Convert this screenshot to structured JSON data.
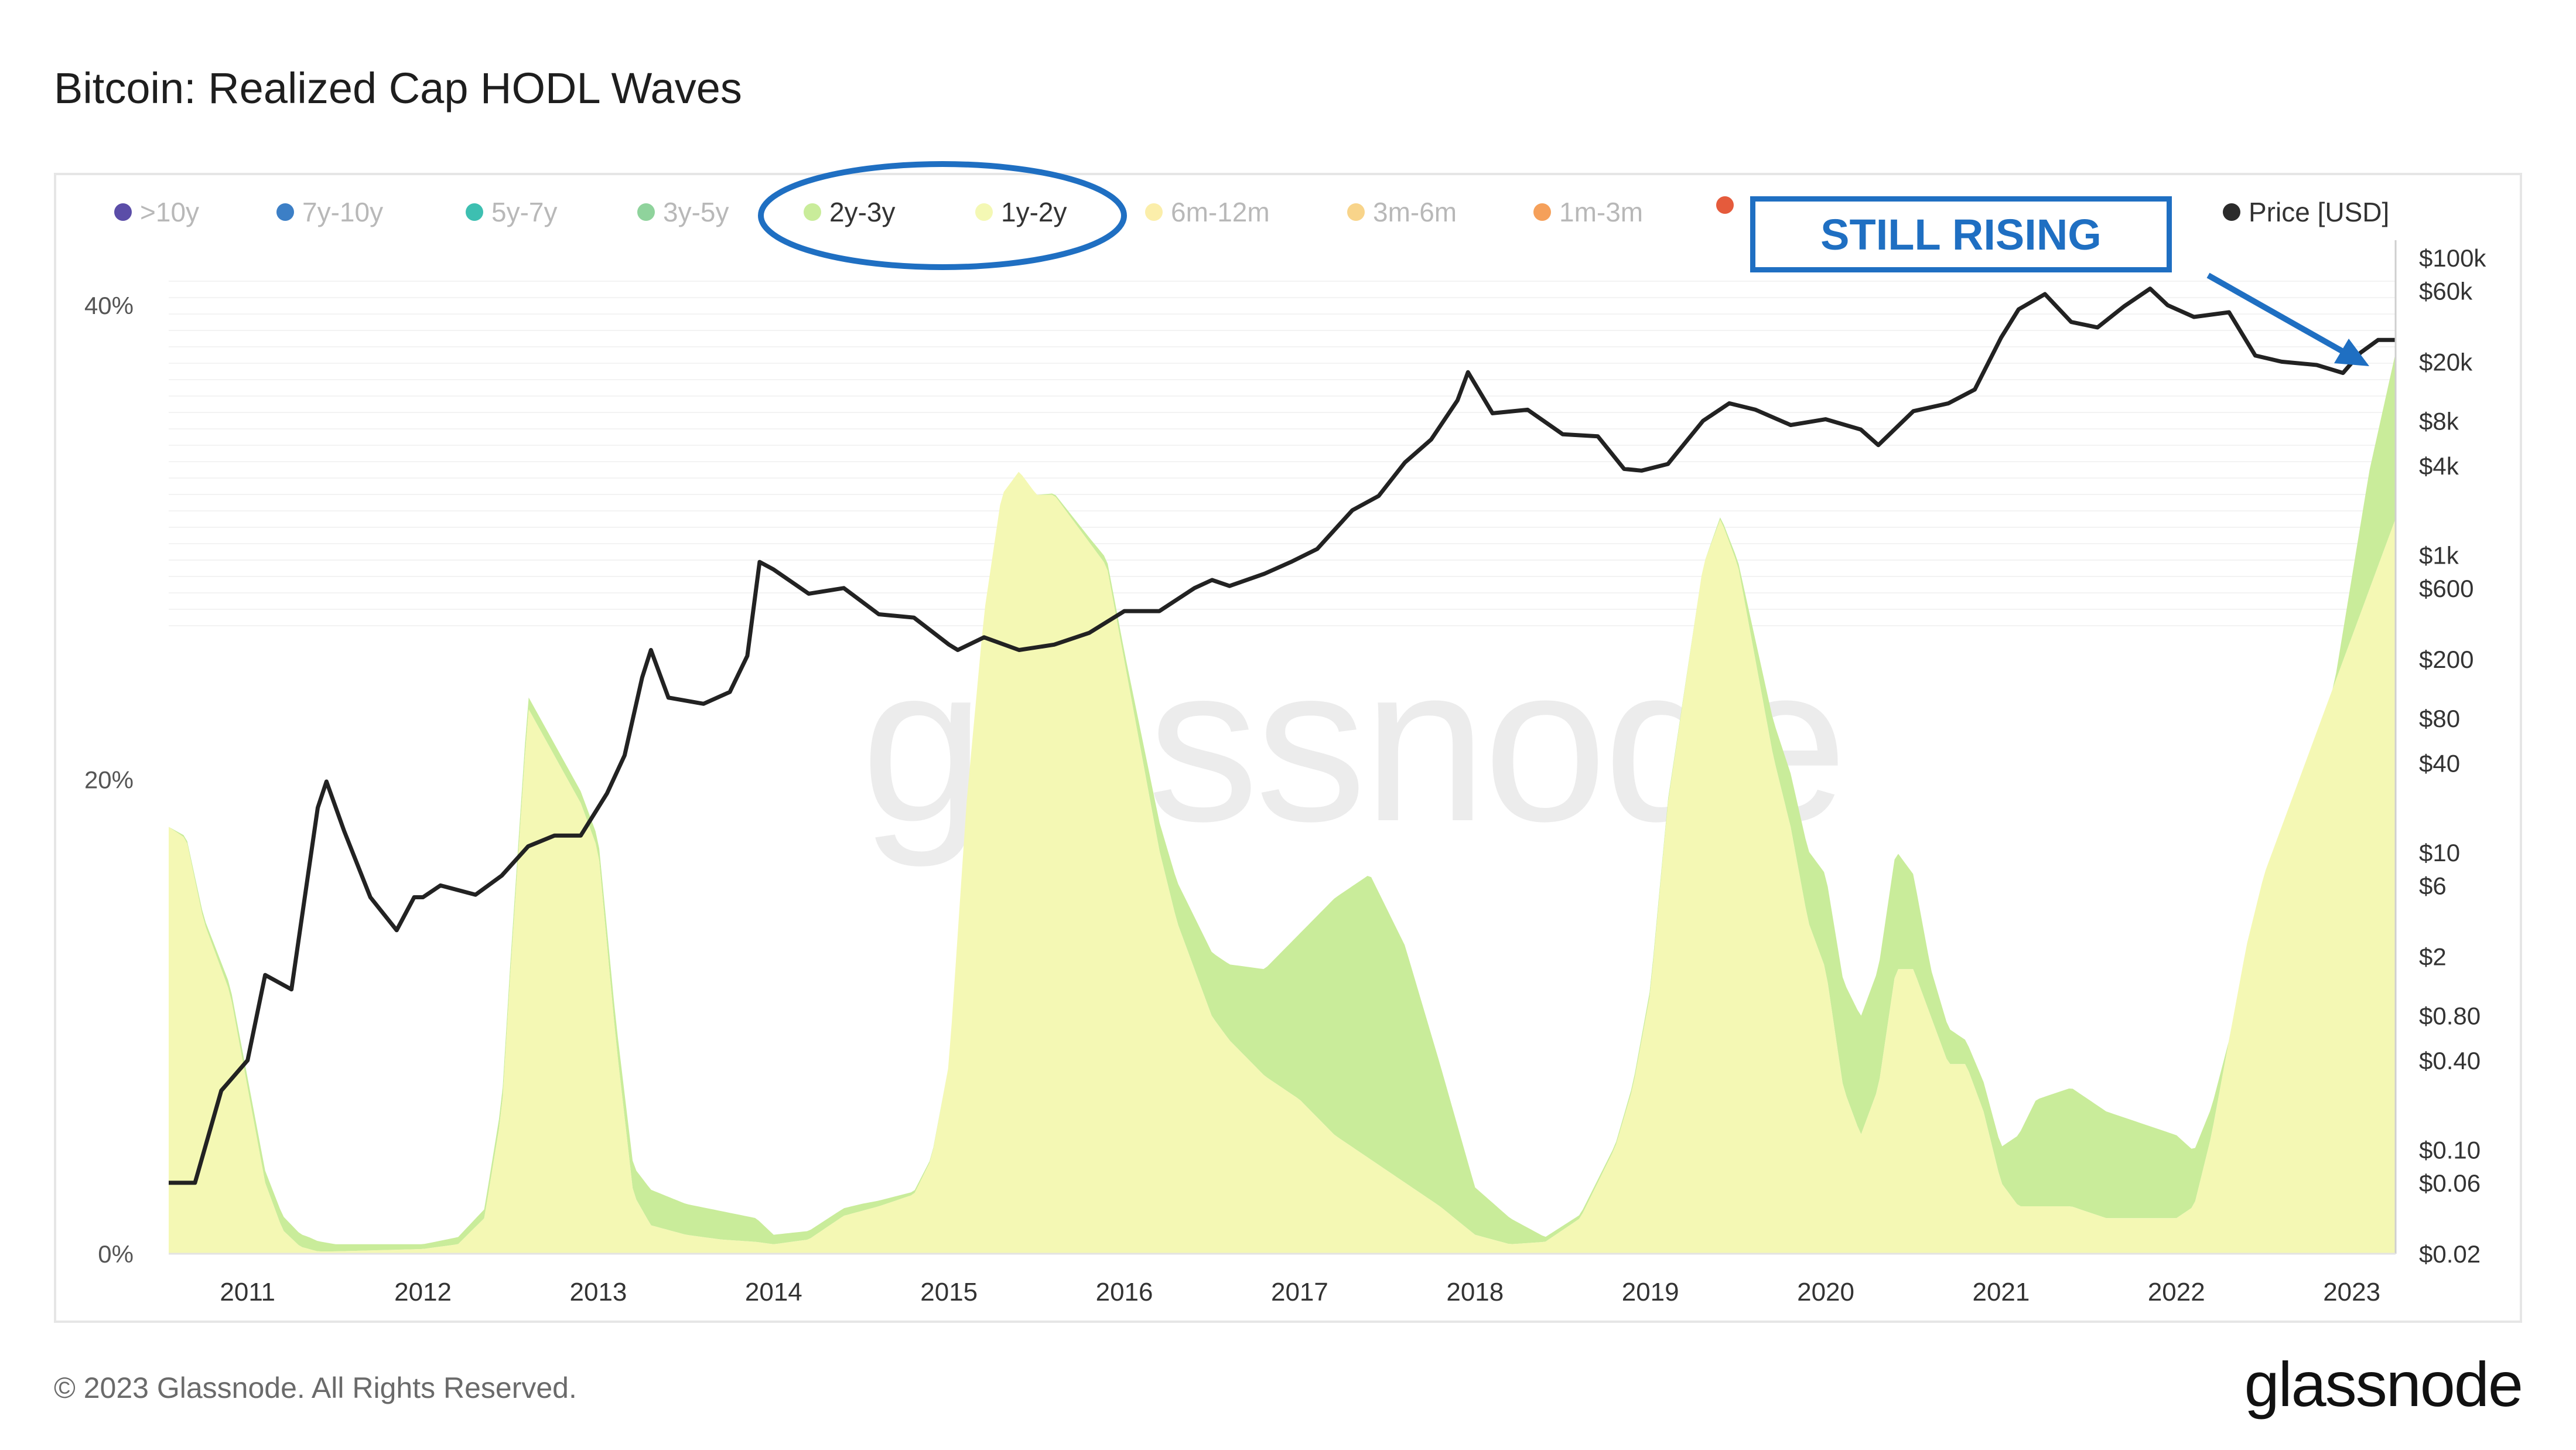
{
  "title": "Bitcoin: Realized Cap HODL Waves",
  "footer": "© 2023 Glassnode. All Rights Reserved.",
  "logo": "glassnode",
  "watermark": "glassnode",
  "annotation": {
    "text": "STILL RISING",
    "color": "#1f6fc2"
  },
  "legend": [
    {
      "label": ">10y",
      "color": "#5b4da8",
      "highlighted": false
    },
    {
      "label": "7y-10y",
      "color": "#3c7fc6",
      "highlighted": false
    },
    {
      "label": "5y-7y",
      "color": "#3dbfb1",
      "highlighted": false
    },
    {
      "label": "3y-5y",
      "color": "#8fd39c",
      "highlighted": false
    },
    {
      "label": "2y-3y",
      "color": "#c9ec9a",
      "highlighted": true
    },
    {
      "label": "1y-2y",
      "color": "#f4f8b4",
      "highlighted": true
    },
    {
      "label": "6m-12m",
      "color": "#fbeeaa",
      "highlighted": false
    },
    {
      "label": "3m-6m",
      "color": "#f8d48a",
      "highlighted": false
    },
    {
      "label": "1m-3m",
      "color": "#f5a05a",
      "highlighted": false
    },
    {
      "label": "",
      "color": "#e55b3c",
      "highlighted": false
    },
    {
      "label": "Price [USD]",
      "color": "#2b2b2b",
      "highlighted": true
    }
  ],
  "chart_data": {
    "type": "area",
    "title": "Bitcoin: Realized Cap HODL Waves",
    "x_ticks": [
      "2011",
      "2012",
      "2013",
      "2014",
      "2015",
      "2016",
      "2017",
      "2018",
      "2019",
      "2020",
      "2021",
      "2022",
      "2023"
    ],
    "xlim": [
      2010.55,
      2023.25
    ],
    "y_left_ticks": [
      "0%",
      "20%",
      "40%"
    ],
    "ylim_left": [
      0,
      42
    ],
    "y_right_ticks": [
      "$100k",
      "$60k",
      "$20k",
      "$8k",
      "$4k",
      "$1k",
      "$600",
      "$200",
      "$80",
      "$40",
      "$10",
      "$6",
      "$2",
      "$0.80",
      "$0.40",
      "$0.10",
      "$0.06",
      "$0.02"
    ],
    "ylim_right_log": [
      0.02,
      100000
    ],
    "series": [
      {
        "name": "1y-2y",
        "color": "#f4f8b4",
        "x": [
          2010.55,
          2010.65,
          2010.75,
          2010.9,
          2011.0,
          2011.1,
          2011.2,
          2011.3,
          2011.4,
          2011.5,
          2012.0,
          2012.2,
          2012.35,
          2012.45,
          2012.5,
          2012.6,
          2012.75,
          2012.9,
          2013.0,
          2013.1,
          2013.2,
          2013.3,
          2013.5,
          2013.7,
          2013.9,
          2014.0,
          2014.2,
          2014.4,
          2014.6,
          2014.8,
          2014.9,
          2015.0,
          2015.1,
          2015.2,
          2015.3,
          2015.4,
          2015.5,
          2015.6,
          2015.7,
          2015.8,
          2015.9,
          2016.0,
          2016.1,
          2016.2,
          2016.3,
          2016.4,
          2016.5,
          2016.6,
          2016.8,
          2017.0,
          2017.2,
          2017.4,
          2017.6,
          2017.8,
          2018.0,
          2018.2,
          2018.4,
          2018.6,
          2018.7,
          2018.8,
          2018.9,
          2019.0,
          2019.1,
          2019.2,
          2019.3,
          2019.4,
          2019.5,
          2019.6,
          2019.7,
          2019.8,
          2019.9,
          2020.0,
          2020.1,
          2020.2,
          2020.3,
          2020.4,
          2020.5,
          2020.6,
          2020.7,
          2020.8,
          2020.9,
          2021.0,
          2021.1,
          2021.2,
          2021.4,
          2021.6,
          2021.8,
          2022.0,
          2022.1,
          2022.2,
          2022.3,
          2022.4,
          2022.5,
          2022.6,
          2022.7,
          2022.8,
          2022.9,
          2023.0,
          2023.1,
          2023.2,
          2023.25
        ],
        "values": [
          18,
          17.5,
          14,
          11,
          7,
          3,
          1,
          0.3,
          0.1,
          0.1,
          0.2,
          0.4,
          1.5,
          6,
          12,
          23,
          21,
          19,
          17,
          9,
          2.5,
          1.2,
          0.8,
          0.6,
          0.5,
          0.4,
          0.6,
          1.6,
          2,
          2.5,
          4,
          8,
          19,
          27,
          32,
          33,
          32,
          32,
          31,
          30,
          29,
          25,
          21,
          17,
          14,
          12,
          10,
          9,
          7.5,
          6.5,
          5,
          4,
          3,
          2,
          0.8,
          0.4,
          0.5,
          1.5,
          3,
          4.5,
          7,
          11,
          19,
          24,
          29,
          31,
          29,
          25,
          21,
          18,
          14,
          12,
          7,
          5,
          7,
          12,
          12,
          10,
          8,
          8,
          6,
          3,
          2,
          2,
          2,
          1.5,
          1.5,
          1.5,
          2,
          5,
          9,
          13,
          16,
          18,
          20,
          22,
          24,
          26,
          28,
          30,
          31
        ]
      },
      {
        "name": "2y-3y",
        "color": "#c9ec9a",
        "x": [
          2010.55,
          2011.2,
          2011.35,
          2011.5,
          2012.0,
          2012.6,
          2013.0,
          2013.3,
          2013.5,
          2013.7,
          2013.9,
          2014.0,
          2014.5,
          2015.0,
          2015.5,
          2015.8,
          2016.0,
          2016.2,
          2016.4,
          2016.6,
          2016.8,
          2017.0,
          2017.2,
          2017.4,
          2017.6,
          2017.8,
          2018.0,
          2018.4,
          2018.8,
          2019.0,
          2019.3,
          2019.5,
          2019.7,
          2019.9,
          2020.0,
          2020.2,
          2020.4,
          2020.5,
          2020.6,
          2020.8,
          2021.0,
          2021.2,
          2021.4,
          2021.6,
          2021.8,
          2022.0,
          2022.3,
          2022.6,
          2022.9,
          2023.1,
          2023.25
        ],
        "values": [
          0,
          0.6,
          0.5,
          0.3,
          0.2,
          0.5,
          0.5,
          1.5,
          1.3,
          1.2,
          1.0,
          0.4,
          0.3,
          0,
          0,
          0.2,
          0.4,
          1.2,
          2.2,
          3.2,
          4.5,
          7,
          10,
          12,
          10,
          6,
          2,
          0.2,
          0.1,
          0.2,
          0,
          0.2,
          1.5,
          3,
          4,
          5,
          5,
          4,
          2,
          1,
          1.5,
          4.5,
          5,
          4.5,
          4,
          3.5,
          0,
          0,
          0,
          5,
          7
        ]
      }
    ],
    "price_series": {
      "name": "Price [USD]",
      "color": "#222222",
      "x": [
        2010.55,
        2010.7,
        2010.85,
        2011.0,
        2011.1,
        2011.25,
        2011.4,
        2011.45,
        2011.55,
        2011.7,
        2011.85,
        2011.95,
        2012.0,
        2012.1,
        2012.3,
        2012.45,
        2012.6,
        2012.75,
        2012.9,
        2013.05,
        2013.15,
        2013.25,
        2013.3,
        2013.4,
        2013.6,
        2013.75,
        2013.85,
        2013.92,
        2014.0,
        2014.2,
        2014.4,
        2014.6,
        2014.8,
        2015.0,
        2015.05,
        2015.2,
        2015.4,
        2015.6,
        2015.8,
        2016.0,
        2016.2,
        2016.4,
        2016.5,
        2016.6,
        2016.8,
        2016.95,
        2017.1,
        2017.3,
        2017.45,
        2017.6,
        2017.75,
        2017.9,
        2017.96,
        2018.1,
        2018.3,
        2018.5,
        2018.7,
        2018.85,
        2018.95,
        2019.1,
        2019.3,
        2019.45,
        2019.6,
        2019.8,
        2020.0,
        2020.2,
        2020.3,
        2020.5,
        2020.7,
        2020.85,
        2021.0,
        2021.1,
        2021.25,
        2021.4,
        2021.55,
        2021.7,
        2021.85,
        2021.95,
        2022.1,
        2022.3,
        2022.45,
        2022.6,
        2022.8,
        2022.95,
        2023.05,
        2023.15,
        2023.25
      ],
      "values": [
        0.06,
        0.06,
        0.25,
        0.4,
        1.5,
        1.2,
        20,
        30,
        14,
        5,
        3,
        5,
        5,
        6,
        5.2,
        7,
        11,
        13,
        13,
        25,
        45,
        150,
        230,
        110,
        100,
        120,
        210,
        900,
        800,
        550,
        600,
        400,
        380,
        250,
        230,
        280,
        230,
        250,
        300,
        420,
        420,
        600,
        680,
        620,
        750,
        900,
        1100,
        2000,
        2500,
        4200,
        6000,
        11000,
        17000,
        9000,
        9500,
        6500,
        6300,
        3800,
        3700,
        4100,
        8000,
        10500,
        9500,
        7500,
        8200,
        7000,
        5500,
        9300,
        10500,
        13000,
        29000,
        45000,
        57000,
        37000,
        34000,
        47000,
        62000,
        48000,
        40000,
        43000,
        22000,
        20000,
        19000,
        16800,
        23000,
        28000,
        28000
      ]
    }
  }
}
